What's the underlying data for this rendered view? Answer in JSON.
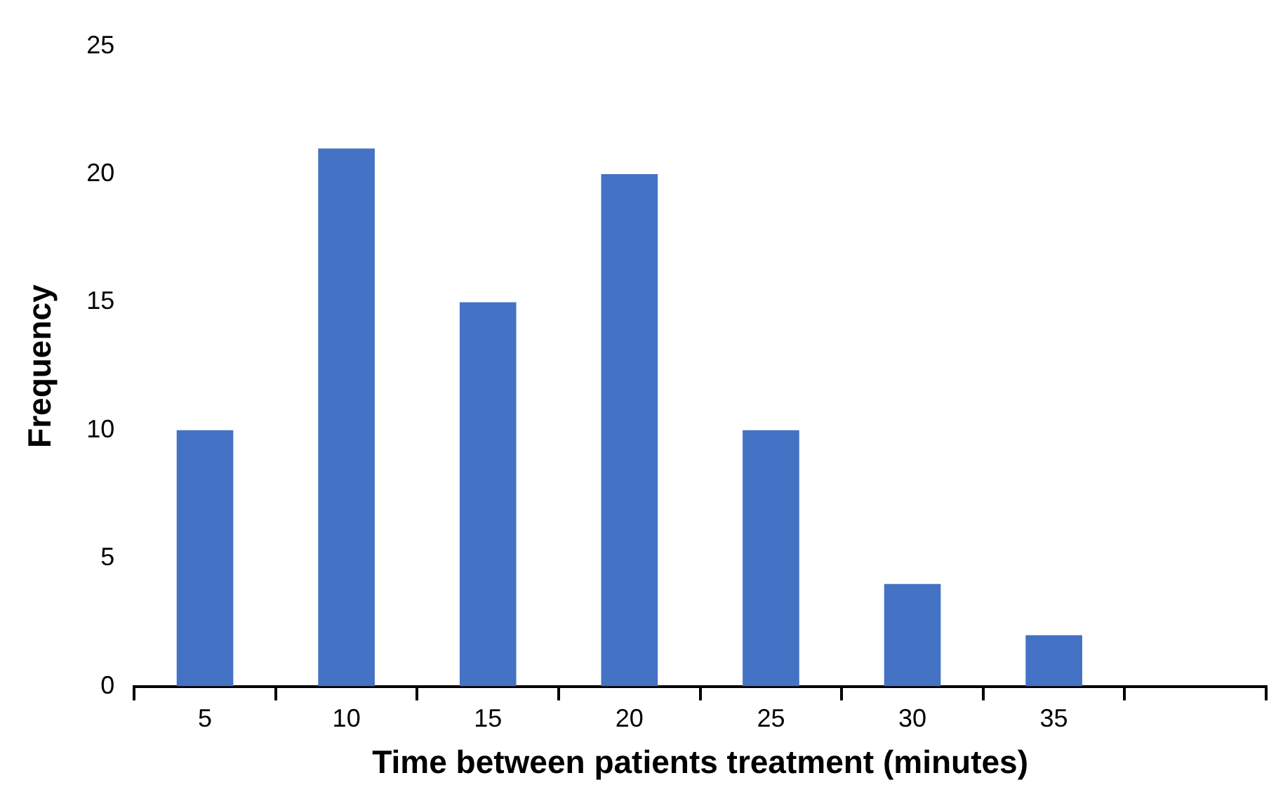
{
  "chart_data": {
    "type": "bar",
    "xlabel": "Time between patients treatment (minutes)",
    "ylabel": "Frequency",
    "categories": [
      "5",
      "10",
      "15",
      "20",
      "25",
      "30",
      "35",
      null
    ],
    "values": [
      10,
      21,
      15,
      20,
      10,
      4,
      2,
      null
    ],
    "color": "#4472c4",
    "ylim": [
      0,
      25
    ],
    "yticks": [
      0,
      5,
      10,
      15,
      20,
      25
    ],
    "grid": false,
    "legend": false
  }
}
